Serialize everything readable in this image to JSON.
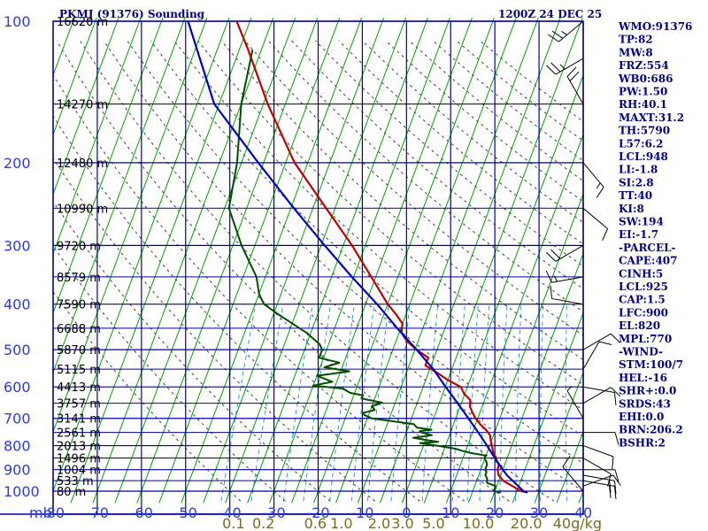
{
  "header": {
    "station": "PKMJ (91376) Sounding",
    "valid": "1200Z 24 DEC 25"
  },
  "colors": {
    "frame": "#0000a0",
    "isotherm": "#00a000",
    "dry_adiabat": "#404040",
    "mixing_ratio": "#3399dd",
    "temperature": "#c00000",
    "dewpoint": "#004d00",
    "parcel": "#0000c0",
    "wind": "#000000"
  },
  "indices": [
    "WMO:91376",
    "TP:82",
    "MW:8",
    "FRZ:554",
    "WB0:686",
    "PW:1.50",
    "RH:40.1",
    "MAXT:31.2",
    "TH:5790",
    "L57:6.2",
    "LCL:948",
    "LI:-1.8",
    "SI:2.8",
    "TT:40",
    "KI:8",
    "SW:194",
    "EI:-1.7",
    "-PARCEL-",
    "CAPE:407",
    "CINH:5",
    "LCL:925",
    "CAP:1.5",
    "LFC:900",
    "EL:820",
    "MPL:770",
    "-WIND-",
    "STM:100/7",
    "HEL:-16",
    "SHR+:0.0",
    "SRDS:43",
    "EHI:0.0",
    "BRN:206.2",
    "BSHR:2"
  ],
  "chart_data": {
    "type": "line",
    "title": "PKMJ (91376) Sounding",
    "xlabel": "mb",
    "ylabel": "",
    "xlim": [
      -80,
      40
    ],
    "ylim": [
      1000,
      100
    ],
    "y_scale": "log",
    "x_tick_labels": [
      "-80",
      "-70",
      "-60",
      "-50",
      "-40",
      "-30",
      "-20",
      "-10",
      "0",
      "10",
      "20",
      "30",
      "40"
    ],
    "pressure_levels": [
      100,
      200,
      300,
      400,
      500,
      600,
      700,
      800,
      900,
      1000
    ],
    "height_labels": [
      {
        "p": 100,
        "label": "16620 m"
      },
      {
        "p": 150,
        "label": "14270 m"
      },
      {
        "p": 200,
        "label": "12480 m"
      },
      {
        "p": 250,
        "label": "10990 m"
      },
      {
        "p": 300,
        "label": "9720 m"
      },
      {
        "p": 350,
        "label": "8579 m"
      },
      {
        "p": 400,
        "label": "7590 m"
      },
      {
        "p": 450,
        "label": "6688 m"
      },
      {
        "p": 500,
        "label": "5870 m"
      },
      {
        "p": 550,
        "label": "5115 m"
      },
      {
        "p": 600,
        "label": "4413 m"
      },
      {
        "p": 650,
        "label": "3757 m"
      },
      {
        "p": 700,
        "label": "3141 m"
      },
      {
        "p": 750,
        "label": "2561 m"
      },
      {
        "p": 800,
        "label": "2013 m"
      },
      {
        "p": 850,
        "label": "1496 m"
      },
      {
        "p": 900,
        "label": "1004 m"
      },
      {
        "p": 950,
        "label": "533 m"
      },
      {
        "p": 1000,
        "label": "80 m"
      }
    ],
    "mixing_ratio_labels": [
      {
        "w": 0.1,
        "label": "0.1"
      },
      {
        "w": 0.2,
        "label": "0.2"
      },
      {
        "w": 0.6,
        "label": "0.6"
      },
      {
        "w": 1.0,
        "label": "1.0"
      },
      {
        "w": 2.0,
        "label": "2.0"
      },
      {
        "w": 3.0,
        "label": "3.0"
      },
      {
        "w": 5.0,
        "label": "5.0"
      },
      {
        "w": 10.0,
        "label": "10.0"
      },
      {
        "w": 20.0,
        "label": "20.0"
      },
      {
        "w": 40.0,
        "label": "40g/kg"
      }
    ],
    "series": [
      {
        "key": "temperature",
        "points": [
          [
            1006,
            27.5
          ],
          [
            1000,
            26
          ],
          [
            975,
            23.5
          ],
          [
            950,
            21
          ],
          [
            925,
            19.5
          ],
          [
            900,
            18.8
          ],
          [
            880,
            18.7
          ],
          [
            860,
            17.8
          ],
          [
            850,
            17.5
          ],
          [
            825,
            16.3
          ],
          [
            800,
            15.5
          ],
          [
            780,
            14.8
          ],
          [
            760,
            14.2
          ],
          [
            740,
            12.8
          ],
          [
            720,
            11
          ],
          [
            700,
            9.5
          ],
          [
            680,
            8.3
          ],
          [
            660,
            7.2
          ],
          [
            640,
            6.8
          ],
          [
            620,
            4.8
          ],
          [
            600,
            3.5
          ],
          [
            580,
            0
          ],
          [
            560,
            -3
          ],
          [
            540,
            -6.3
          ],
          [
            520,
            -6.3
          ],
          [
            500,
            -9.6
          ],
          [
            480,
            -12.5
          ],
          [
            460,
            -14.5
          ],
          [
            440,
            -15
          ],
          [
            420,
            -17.3
          ],
          [
            400,
            -20
          ],
          [
            350,
            -26
          ],
          [
            300,
            -33
          ],
          [
            250,
            -42
          ],
          [
            200,
            -53
          ],
          [
            150,
            -64
          ],
          [
            115,
            -73
          ],
          [
            100,
            -78
          ]
        ]
      },
      {
        "key": "dewpoint",
        "points": [
          [
            1006,
            21.5
          ],
          [
            1000,
            19.8
          ],
          [
            975,
            19.7
          ],
          [
            960,
            17.5
          ],
          [
            940,
            17.2
          ],
          [
            925,
            16.5
          ],
          [
            910,
            16.5
          ],
          [
            900,
            16
          ],
          [
            880,
            16
          ],
          [
            865,
            15.6
          ],
          [
            850,
            14.8
          ],
          [
            840,
            15
          ],
          [
            830,
            11.5
          ],
          [
            820,
            9
          ],
          [
            812,
            7.5
          ],
          [
            800,
            3
          ],
          [
            790,
            -1
          ],
          [
            785,
            3
          ],
          [
            778,
            0
          ],
          [
            770,
            -3
          ],
          [
            760,
            1
          ],
          [
            752,
            -1
          ],
          [
            748,
            -2
          ],
          [
            745,
            -2
          ],
          [
            740,
            0.5
          ],
          [
            732,
            -3
          ],
          [
            720,
            -4
          ],
          [
            700,
            -14
          ],
          [
            688,
            -16
          ],
          [
            682,
            -16.5
          ],
          [
            672,
            -14
          ],
          [
            660,
            -15
          ],
          [
            648,
            -13
          ],
          [
            635,
            -18
          ],
          [
            625,
            -18
          ],
          [
            618,
            -21
          ],
          [
            605,
            -23
          ],
          [
            596,
            -30
          ],
          [
            585,
            -26
          ],
          [
            568,
            -30
          ],
          [
            556,
            -23
          ],
          [
            545,
            -29
          ],
          [
            533,
            -26
          ],
          [
            520,
            -31
          ],
          [
            500,
            -31
          ],
          [
            487,
            -32
          ],
          [
            460,
            -36
          ],
          [
            420,
            -44
          ],
          [
            400,
            -48
          ],
          [
            380,
            -50
          ],
          [
            350,
            -52
          ],
          [
            300,
            -58
          ],
          [
            250,
            -64
          ],
          [
            200,
            -66
          ],
          [
            150,
            -70
          ],
          [
            115,
            -72
          ]
        ]
      },
      {
        "key": "parcel",
        "points": [
          [
            1006,
            27.5
          ],
          [
            1000,
            26.5
          ],
          [
            925,
            21.4
          ],
          [
            900,
            20
          ],
          [
            850,
            17.2
          ],
          [
            800,
            14.4
          ],
          [
            750,
            11.3
          ],
          [
            700,
            7.9
          ],
          [
            650,
            4.2
          ],
          [
            600,
            0.1
          ],
          [
            550,
            -4.2
          ],
          [
            500,
            -9.6
          ],
          [
            450,
            -15.8
          ],
          [
            400,
            -22.4
          ],
          [
            350,
            -30.4
          ],
          [
            300,
            -39.2
          ],
          [
            250,
            -49.3
          ],
          [
            200,
            -61.2
          ],
          [
            150,
            -76.1
          ],
          [
            100,
            -89
          ]
        ]
      }
    ],
    "wind": [
      {
        "p": 1000,
        "dir": 320,
        "spd": 10
      },
      {
        "p": 975,
        "dir": 70,
        "spd": 10
      },
      {
        "p": 950,
        "dir": 100,
        "spd": 20
      },
      {
        "p": 925,
        "dir": 100,
        "spd": 20
      },
      {
        "p": 900,
        "dir": 90,
        "spd": 10
      },
      {
        "p": 850,
        "dir": 120,
        "spd": 10
      },
      {
        "p": 800,
        "dir": 110,
        "spd": 10
      },
      {
        "p": 750,
        "dir": 90,
        "spd": 10
      },
      {
        "p": 700,
        "dir": 330,
        "spd": 5
      },
      {
        "p": 650,
        "dir": 60,
        "spd": 10
      },
      {
        "p": 600,
        "dir": 100,
        "spd": 10
      },
      {
        "p": 550,
        "dir": 30,
        "spd": 10
      },
      {
        "p": 500,
        "dir": 60,
        "spd": 10
      },
      {
        "p": 400,
        "dir": 280,
        "spd": 10
      },
      {
        "p": 350,
        "dir": 260,
        "spd": 15
      },
      {
        "p": 300,
        "dir": 240,
        "spd": 20
      },
      {
        "p": 250,
        "dir": 130,
        "spd": 10
      },
      {
        "p": 200,
        "dir": 140,
        "spd": 15
      },
      {
        "p": 150,
        "dir": 330,
        "spd": 20
      },
      {
        "p": 120,
        "dir": 240,
        "spd": 25
      },
      {
        "p": 100,
        "dir": 230,
        "spd": 25
      }
    ]
  }
}
